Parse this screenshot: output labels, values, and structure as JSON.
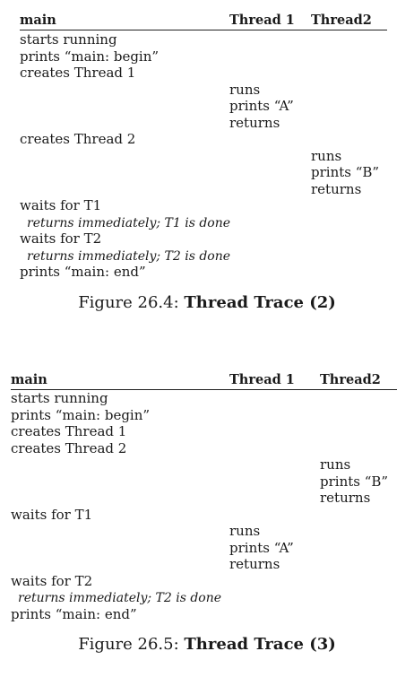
{
  "figures": [
    {
      "headers": [
        "main",
        "Thread 1",
        "Thread2"
      ],
      "rows": [
        {
          "col": 0,
          "text": "starts running",
          "italic": false
        },
        {
          "col": 0,
          "text": "prints “main: begin”",
          "italic": false
        },
        {
          "col": 0,
          "text": "creates Thread 1",
          "italic": false
        },
        {
          "col": 1,
          "text": "runs",
          "italic": false
        },
        {
          "col": 1,
          "text": "prints “A”",
          "italic": false
        },
        {
          "col": 1,
          "text": "returns",
          "italic": false
        },
        {
          "col": 0,
          "text": "creates Thread 2",
          "italic": false
        },
        {
          "col": 2,
          "text": "runs",
          "italic": false
        },
        {
          "col": 2,
          "text": "prints “B”",
          "italic": false
        },
        {
          "col": 2,
          "text": "returns",
          "italic": false
        },
        {
          "col": 0,
          "text": "waits for T1",
          "italic": false
        },
        {
          "col": 0,
          "text": "returns immediately; T1 is done",
          "italic": true
        },
        {
          "col": 0,
          "text": "waits for T2",
          "italic": false
        },
        {
          "col": 0,
          "text": "returns immediately; T2 is done",
          "italic": true
        },
        {
          "col": 0,
          "text": "prints “main: end”",
          "italic": false
        }
      ],
      "caption_prefix": "Figure 26.4: ",
      "caption_title": "Thread Trace (2)"
    },
    {
      "headers": [
        "main",
        "Thread 1",
        "Thread2"
      ],
      "rows": [
        {
          "col": 0,
          "text": "starts running",
          "italic": false
        },
        {
          "col": 0,
          "text": "prints “main: begin”",
          "italic": false
        },
        {
          "col": 0,
          "text": "creates Thread 1",
          "italic": false
        },
        {
          "col": 0,
          "text": "creates Thread 2",
          "italic": false
        },
        {
          "col": 2,
          "text": "runs",
          "italic": false
        },
        {
          "col": 2,
          "text": "prints “B”",
          "italic": false
        },
        {
          "col": 2,
          "text": "returns",
          "italic": false
        },
        {
          "col": 0,
          "text": "waits for T1",
          "italic": false
        },
        {
          "col": 1,
          "text": "runs",
          "italic": false
        },
        {
          "col": 1,
          "text": "prints “A”",
          "italic": false
        },
        {
          "col": 1,
          "text": "returns",
          "italic": false
        },
        {
          "col": 0,
          "text": "waits for T2",
          "italic": false
        },
        {
          "col": 0,
          "text": "returns immediately; T2 is done",
          "italic": true
        },
        {
          "col": 0,
          "text": "prints “main: end”",
          "italic": false
        }
      ],
      "caption_prefix": "Figure 26.5: ",
      "caption_title": "Thread Trace (3)"
    }
  ]
}
